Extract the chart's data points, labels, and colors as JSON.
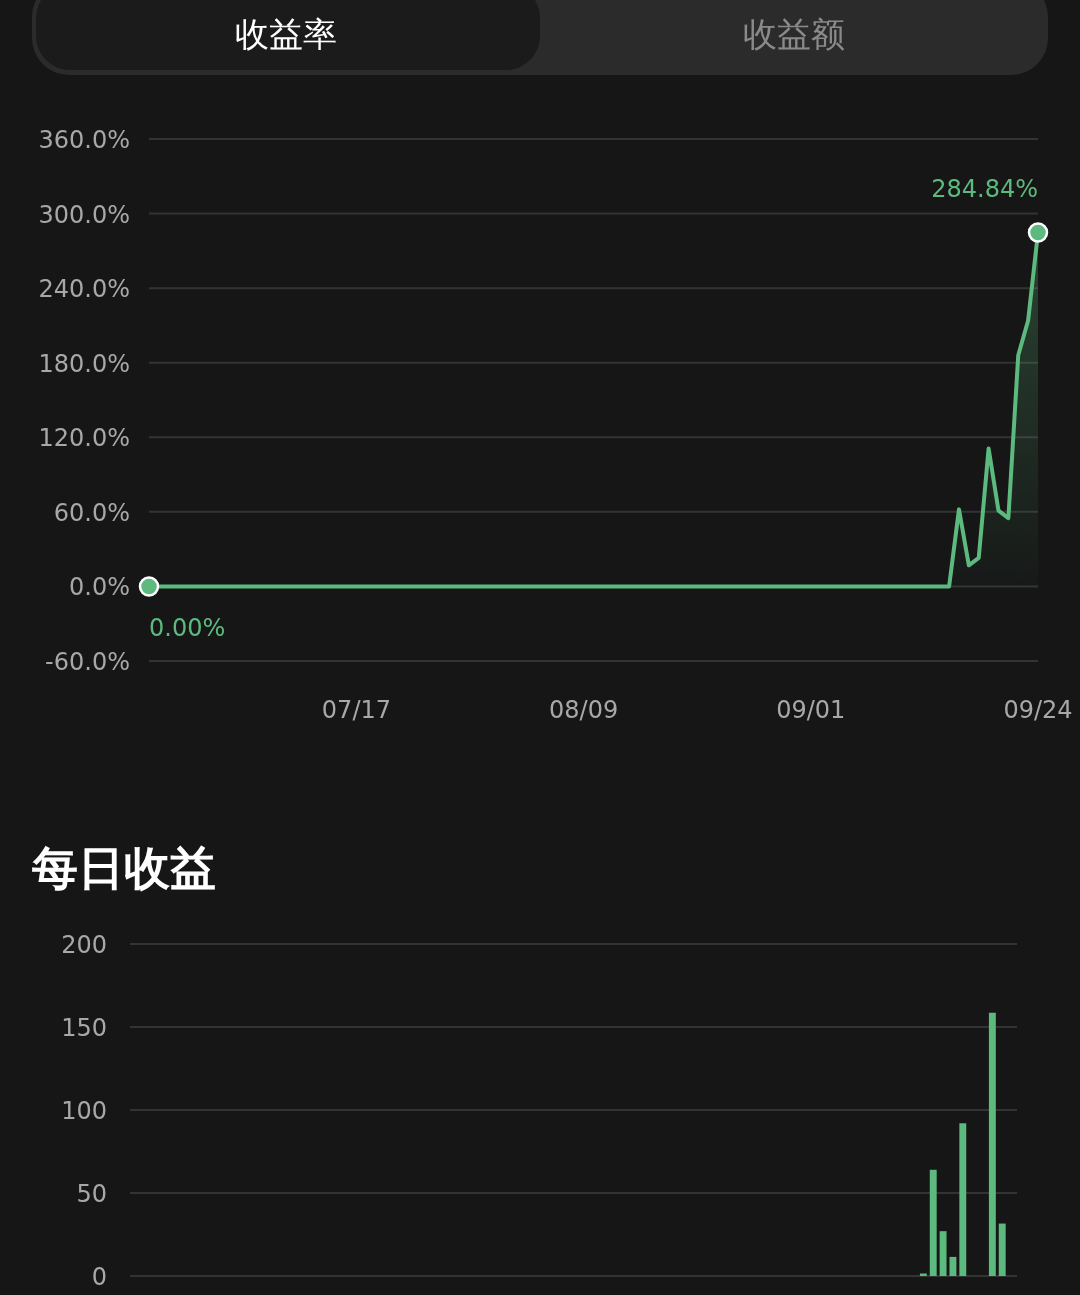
{
  "chart_data": [
    {
      "type": "line",
      "annotations": [
        "收益率",
        "收益额",
        {
          "text": "0.00%",
          "x": "--06-26",
          "y": 0
        },
        {
          "text": "284.84%",
          "x": "--09-24",
          "y": 284.84
        }
      ],
      "x": [
        "--06-26",
        "--09-15",
        "--09-16",
        "--09-17",
        "--09-18",
        "--09-19",
        "--09-20",
        "--09-21",
        "--09-22",
        "--09-23",
        "--09-24"
      ],
      "series": [
        {
          "color": "#5dba7f",
          "values": [
            0,
            0,
            62,
            17,
            23,
            111,
            61,
            55,
            186,
            214,
            284.84
          ]
        }
      ],
      "xlim": [
        "--06-26",
        "--09-24"
      ],
      "xticks": [
        {
          "value": "--07-17",
          "label": "07/17"
        },
        {
          "value": "--08-09",
          "label": "08/09"
        },
        {
          "value": "--09-01",
          "label": "09/01"
        },
        {
          "value": "--09-24",
          "label": "09/24"
        }
      ],
      "ylim": [
        -60,
        360
      ],
      "yticks": [
        {
          "value": -60,
          "label": "-60.0%"
        },
        {
          "value": 0,
          "label": "0.0%"
        },
        {
          "value": 60,
          "label": "60.0%"
        },
        {
          "value": 120,
          "label": "120.0%"
        },
        {
          "value": 180,
          "label": "180.0%"
        },
        {
          "value": 240,
          "label": "240.0%"
        },
        {
          "value": 300,
          "label": "300.0%"
        },
        {
          "value": 360,
          "label": "360.0%"
        }
      ],
      "grid": "y",
      "line_style": "solid"
    },
    {
      "type": "bar",
      "title": "每日收益",
      "categories": [
        null,
        null,
        null,
        null,
        null,
        null,
        null,
        null,
        null,
        null,
        null,
        null,
        null,
        null,
        null,
        null,
        null,
        null,
        null,
        null,
        null,
        null,
        null,
        null,
        null,
        null,
        null,
        null,
        null,
        null,
        null,
        null,
        null,
        null,
        null,
        null,
        null,
        null,
        null,
        null,
        null,
        null,
        null,
        null,
        null,
        null,
        null,
        null,
        null,
        null,
        null,
        null,
        null,
        null,
        null,
        null,
        null,
        null,
        null,
        null,
        null,
        null,
        null,
        null,
        null,
        null,
        null,
        null,
        null,
        null,
        null,
        null,
        null,
        null,
        null,
        null,
        null,
        null,
        null,
        null,
        null,
        null,
        null,
        null,
        null,
        null,
        null,
        null,
        null,
        null
      ],
      "values": [
        0,
        0,
        0,
        0,
        0,
        0,
        0,
        0,
        0,
        0,
        0,
        0,
        0,
        0,
        0,
        0,
        0,
        0,
        0,
        0,
        0,
        0,
        0,
        0,
        0,
        0,
        0,
        0,
        0,
        0,
        0,
        0,
        0,
        0,
        0,
        0,
        0,
        0,
        0,
        0,
        0,
        0,
        0,
        0,
        0,
        0,
        0,
        0,
        0,
        0,
        0,
        0,
        0,
        0,
        0,
        0,
        0,
        0,
        0,
        0,
        0,
        0,
        0,
        0,
        0,
        0,
        0,
        0,
        0,
        0,
        0,
        0,
        0,
        0,
        0,
        0,
        0,
        0,
        0,
        0,
        1.5,
        64,
        27,
        11.5,
        92,
        0,
        0,
        158.6,
        31.6,
        0
      ],
      "color": "#5dba7f",
      "ylim": [
        0,
        200
      ],
      "yticks": [
        0,
        50,
        100,
        150,
        200
      ],
      "grid": "y"
    }
  ]
}
